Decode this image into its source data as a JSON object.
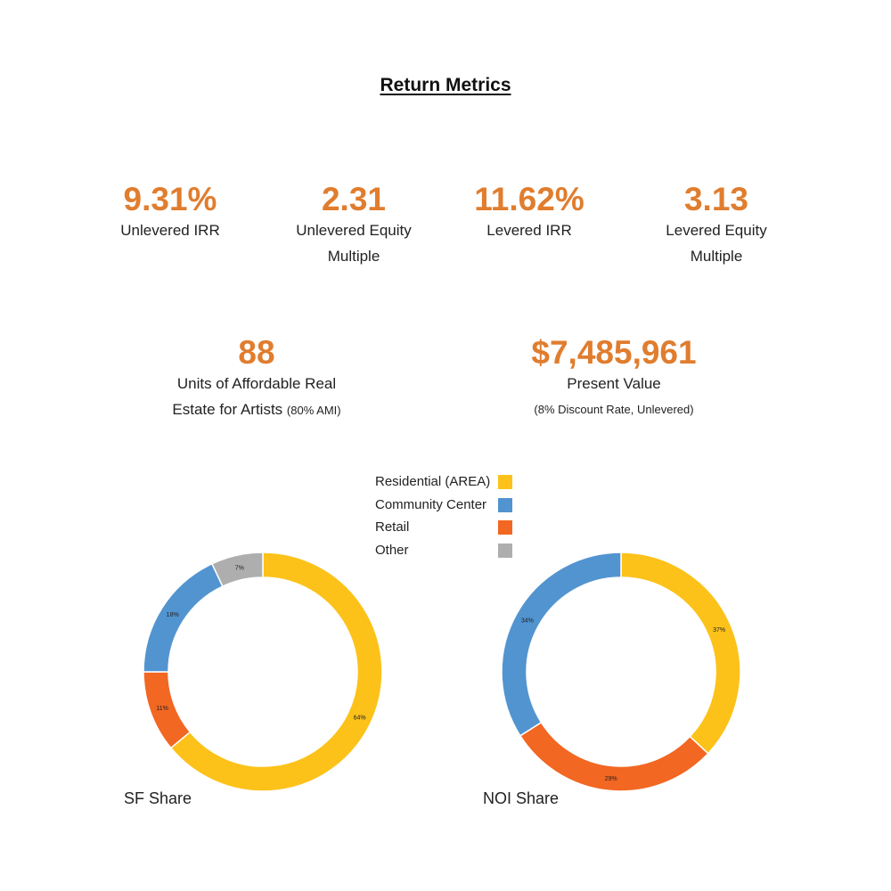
{
  "page": {
    "title": "Return Metrics"
  },
  "metrics": [
    {
      "value": "9.31%",
      "label": "Unlevered IRR"
    },
    {
      "value": "2.31",
      "label": "Unlevered Equity Multiple"
    },
    {
      "value": "11.62%",
      "label": "Levered IRR"
    },
    {
      "value": "3.13",
      "label": "Levered Equity Multiple"
    }
  ],
  "units": {
    "value": "88",
    "label_line1": "Units of Affordable Real",
    "label_line2": "Estate for Artists",
    "label_small": "(80% AMI)"
  },
  "present_value": {
    "value": "$7,485,961",
    "label": "Present Value",
    "sublabel": "(8% Discount Rate, Unlevered)"
  },
  "colors": {
    "accent": "#e07d2e",
    "residential": "#fcc21a",
    "community": "#5294d0",
    "retail": "#f26722",
    "other": "#aeaeae"
  },
  "chart_data": [
    {
      "type": "pie",
      "title": "SF Share",
      "categories": [
        "Residential (AREA)",
        "Community Center",
        "Retail",
        "Other"
      ],
      "values": [
        64,
        18,
        11,
        7
      ],
      "labels": [
        "64%",
        "18%",
        "11%",
        "7%"
      ],
      "legend": "top"
    },
    {
      "type": "pie",
      "title": "NOI Share",
      "categories": [
        "Residential (AREA)",
        "Community Center",
        "Retail",
        "Other"
      ],
      "values": [
        37,
        34,
        29,
        0
      ],
      "labels": [
        "37%",
        "34%",
        "29%",
        ""
      ],
      "legend": "top"
    }
  ],
  "legend": {
    "items": [
      {
        "label": "Residential (AREA)",
        "color_key": "residential"
      },
      {
        "label": "Community Center",
        "color_key": "community"
      },
      {
        "label": "Retail",
        "color_key": "retail"
      },
      {
        "label": "Other",
        "color_key": "other"
      }
    ]
  }
}
